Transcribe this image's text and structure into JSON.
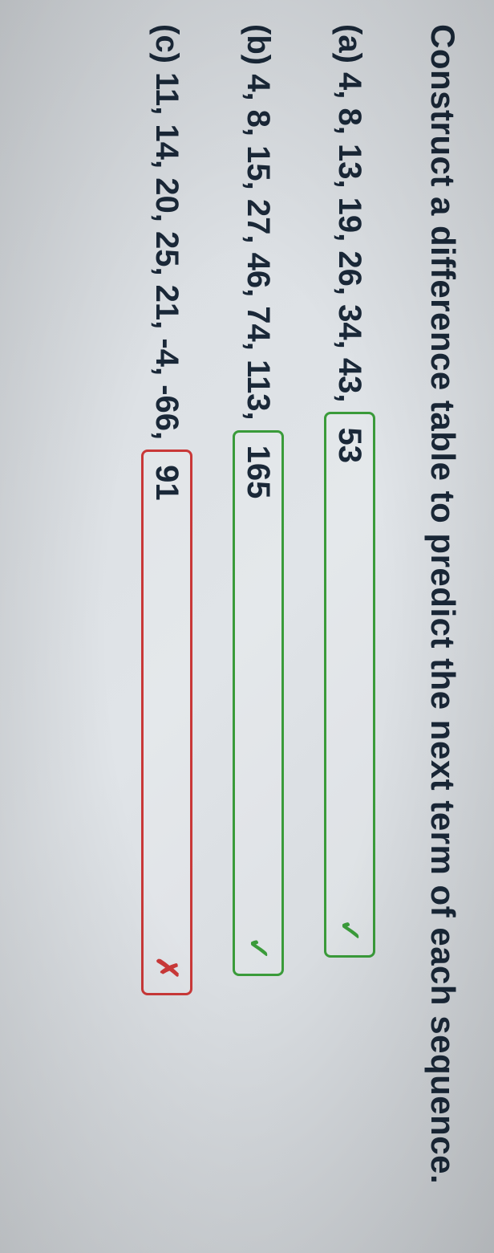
{
  "prompt": "Construct a difference table to predict the next term of each sequence.",
  "questions": [
    {
      "label": "(a)",
      "sequence": "4, 8, 13, 19, 26, 34, 43,",
      "answer": "53",
      "status": "correct",
      "mark": "✓",
      "box_border_color": "#3a9b3a",
      "mark_color": "#3a9b3a"
    },
    {
      "label": "(b)",
      "sequence": "4, 8, 15, 27, 46, 74, 113,",
      "answer": "165",
      "status": "correct",
      "mark": "✓",
      "box_border_color": "#3a9b3a",
      "mark_color": "#3a9b3a"
    },
    {
      "label": "(c)",
      "sequence": "11, 14, 20, 25, 21, -4, -66,",
      "answer": "91",
      "status": "incorrect",
      "mark": "✗",
      "box_border_color": "#c93838",
      "mark_color": "#c93838"
    }
  ],
  "styling": {
    "background_gradient_start": "#d8dce0",
    "background_gradient_end": "#d0d4d8",
    "text_color": "#1a2838",
    "correct_color": "#3a9b3a",
    "incorrect_color": "#c93838",
    "prompt_fontsize": 42,
    "label_fontsize": 40,
    "answer_fontsize": 40,
    "box_border_radius": 8,
    "box_min_width": 680,
    "rotation_deg": 90
  }
}
